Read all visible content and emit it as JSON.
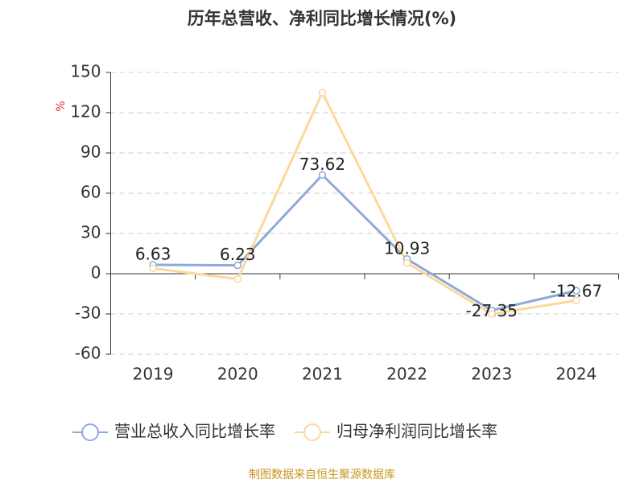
{
  "chart_data": {
    "type": "line",
    "title": "历年总营收、净利同比增长情况(%)",
    "y_label": "%",
    "categories": [
      "2019",
      "2020",
      "2021",
      "2022",
      "2023",
      "2024"
    ],
    "series": [
      {
        "name": "营业总收入同比增长率",
        "color": "#8eaad8",
        "values": [
          6.63,
          6.23,
          73.62,
          10.93,
          -27.35,
          -12.67
        ],
        "show_labels": true
      },
      {
        "name": "归母净利润同比增长率",
        "color": "#fbd99c",
        "values": [
          4,
          -4,
          135,
          8,
          -30,
          -20
        ],
        "show_labels": false
      }
    ],
    "ylim": [
      -60,
      150
    ],
    "yticks": [
      -60,
      -30,
      0,
      30,
      60,
      90,
      120,
      150
    ],
    "grid": true,
    "source": "制图数据来自恒生聚源数据库"
  }
}
